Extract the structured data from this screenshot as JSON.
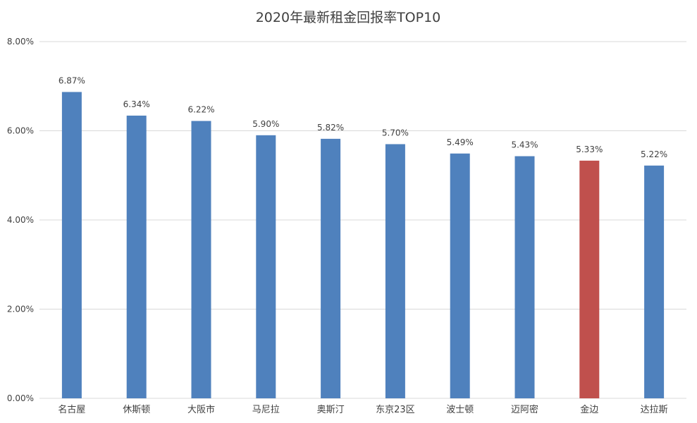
{
  "chart_data": {
    "type": "bar",
    "title": "2020年最新租金回报率TOP10",
    "xlabel": "",
    "ylabel": "",
    "categories": [
      "名古屋",
      "休斯顿",
      "大阪市",
      "马尼拉",
      "奥斯汀",
      "东京23区",
      "波士顿",
      "迈阿密",
      "金边",
      "达拉斯"
    ],
    "values": [
      6.87,
      6.34,
      6.22,
      5.9,
      5.82,
      5.7,
      5.49,
      5.43,
      5.33,
      5.22
    ],
    "data_labels": [
      "6.87%",
      "6.34%",
      "6.22%",
      "5.90%",
      "5.82%",
      "5.70%",
      "5.49%",
      "5.43%",
      "5.33%",
      "5.22%"
    ],
    "ylim": [
      0,
      8
    ],
    "yticks": [
      0,
      2,
      4,
      6,
      8
    ],
    "ytick_labels": [
      "0.00%",
      "2.00%",
      "4.00%",
      "6.00%",
      "8.00%"
    ],
    "grid": true,
    "legend": "none",
    "colors": {
      "default_bar": "#4F81BD",
      "highlight_bar": "#C0504D",
      "gridline": "#D9D9D9",
      "text": "#404040"
    },
    "highlight_index": 8
  }
}
